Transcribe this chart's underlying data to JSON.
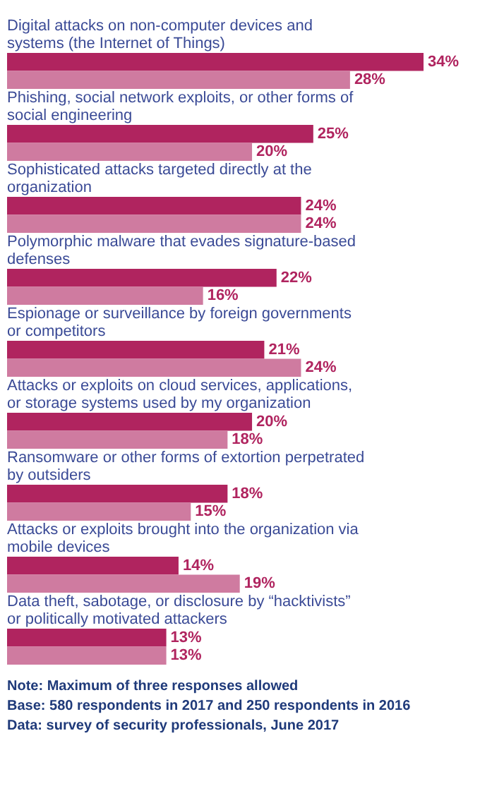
{
  "chart_data": {
    "type": "bar",
    "orientation": "horizontal",
    "categories": [
      "Digital attacks on non-computer devices and systems (the Internet of Things)",
      "Phishing, social network exploits, or other forms of social engineering",
      "Sophisticated attacks targeted directly at the organization",
      "Polymorphic malware that evades signature-based defenses",
      "Espionage or surveillance by foreign governments or competitors",
      "Attacks or exploits on cloud services, applications, or storage systems used by my organization",
      "Ransomware or other forms of extortion perpetrated by outsiders",
      "Attacks or exploits brought into the organization via mobile devices",
      "Data theft, sabotage, or disclosure by “hacktivists” or politically motivated attackers"
    ],
    "series": [
      {
        "color": "#b0245f",
        "values": [
          34,
          25,
          24,
          22,
          21,
          20,
          18,
          14,
          13
        ],
        "value_labels": [
          "34%",
          "25%",
          "24%",
          "22%",
          "21%",
          "20%",
          "18%",
          "14%",
          "13%"
        ]
      },
      {
        "color": "#cf7ba0",
        "values": [
          28,
          20,
          24,
          16,
          24,
          18,
          15,
          19,
          13
        ],
        "value_labels": [
          "28%",
          "20%",
          "24%",
          "16%",
          "24%",
          "18%",
          "15%",
          "19%",
          "13%"
        ]
      }
    ],
    "annotations": [
      "Note: Maximum of three responses allowed",
      "Base: 580 respondents in 2017 and 250 respondents in 2016",
      "Data: survey of security professionals, June 2017"
    ]
  }
}
